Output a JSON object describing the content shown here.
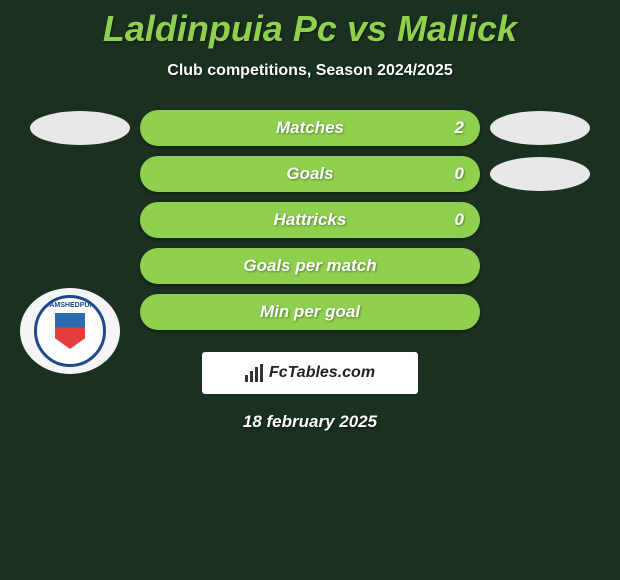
{
  "title": "Laldinpuia Pc vs Mallick",
  "subtitle": "Club competitions, Season 2024/2025",
  "club_badge": {
    "name": "JAMSHEDPUR",
    "colors": {
      "ring": "#1e4a8a",
      "shield_top": "#2b6cb0",
      "shield_bottom": "#e53e3e",
      "bg": "#ffffff"
    }
  },
  "stats": [
    {
      "label": "Matches",
      "value": "2",
      "show_value": true
    },
    {
      "label": "Goals",
      "value": "0",
      "show_value": true
    },
    {
      "label": "Hattricks",
      "value": "0",
      "show_value": true
    },
    {
      "label": "Goals per match",
      "value": "",
      "show_value": false
    },
    {
      "label": "Min per goal",
      "value": "",
      "show_value": false
    }
  ],
  "side_badges": {
    "left": [
      true,
      false,
      false,
      false,
      false
    ],
    "right": [
      true,
      true,
      false,
      false,
      false
    ]
  },
  "footer": {
    "brand": "FcTables.com",
    "date": "18 february 2025"
  },
  "styling": {
    "bg_color": "#1a3020",
    "accent_color": "#8fd14f",
    "text_color": "#ffffff",
    "ellipse_color": "#e8e8e8",
    "pill_width": 340,
    "pill_height": 36,
    "ellipse_width": 100,
    "ellipse_height": 34,
    "title_fontsize": 36,
    "subtitle_fontsize": 16,
    "label_fontsize": 17
  }
}
